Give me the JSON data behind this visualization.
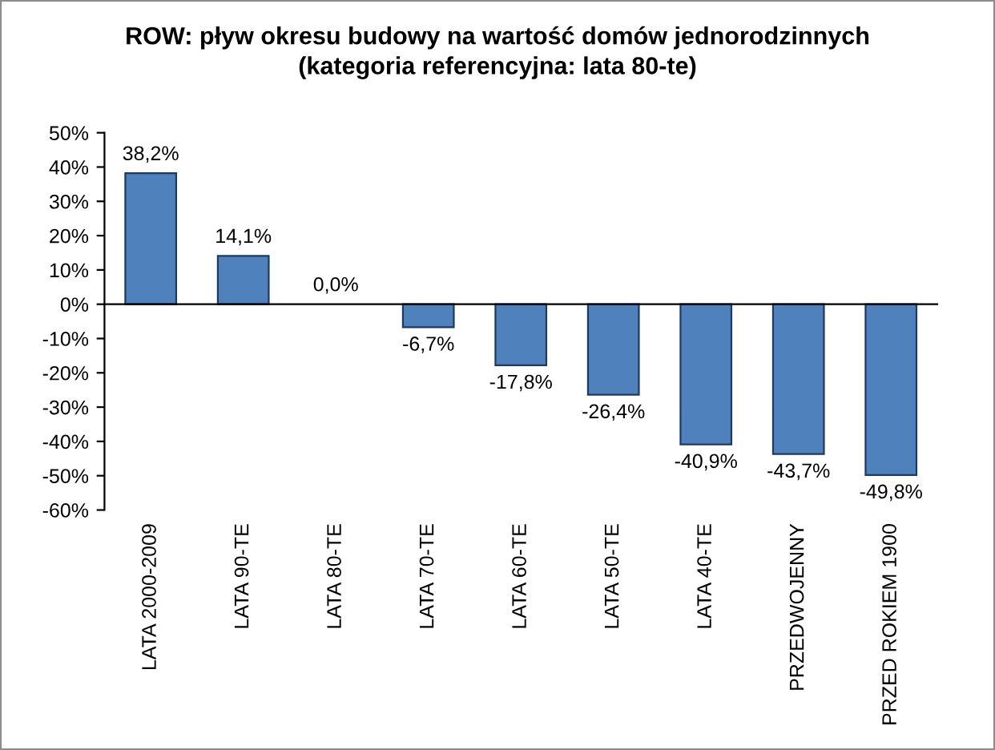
{
  "chart_data": {
    "type": "bar",
    "title": "ROW: pływ okresu budowy na wartość domów jednorodzinnych\n(kategoria referencyjna: lata 80-te)",
    "categories": [
      "LATA 2000-2009",
      "LATA 90-TE",
      "LATA 80-TE",
      "LATA 70-TE",
      "LATA 60-TE",
      "LATA 50-TE",
      "LATA 40-TE",
      "PRZEDWOJENNY",
      "PRZED ROKIEM 1900"
    ],
    "values": [
      38.2,
      14.1,
      0.0,
      -6.7,
      -17.8,
      -26.4,
      -40.9,
      -43.7,
      -49.8
    ],
    "value_labels": [
      "38,2%",
      "14,1%",
      "0,0%",
      "-6,7%",
      "-17,8%",
      "-26,4%",
      "-40,9%",
      "-43,7%",
      "-49,8%"
    ],
    "color": "#4f81bd",
    "ylim": [
      -60,
      50
    ],
    "yticks": [
      {
        "value": -60,
        "label": "-60%"
      },
      {
        "value": -50,
        "label": "-50%"
      },
      {
        "value": -40,
        "label": "-40%"
      },
      {
        "value": -30,
        "label": "-30%"
      },
      {
        "value": -20,
        "label": "-20%"
      },
      {
        "value": -10,
        "label": "-10%"
      },
      {
        "value": 0,
        "label": "0%"
      },
      {
        "value": 10,
        "label": "10%"
      },
      {
        "value": 20,
        "label": "20%"
      },
      {
        "value": 30,
        "label": "30%"
      },
      {
        "value": 40,
        "label": "40%"
      },
      {
        "value": 50,
        "label": "50%"
      }
    ],
    "legend": false
  }
}
